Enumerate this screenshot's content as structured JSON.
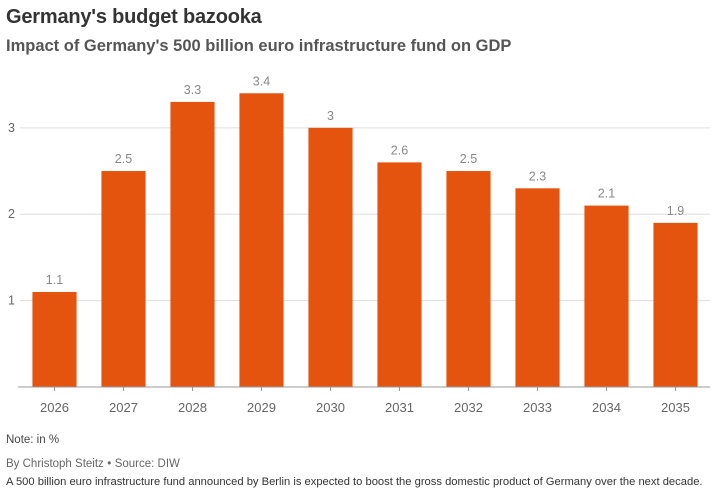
{
  "header": {
    "title": "Germany's budget bazooka",
    "subtitle": "Impact of Germany's 500 billion euro infrastructure fund on GDP"
  },
  "footer": {
    "note": "Note: in %",
    "author": "By Christoph Steitz",
    "source": "Source: DIW",
    "caption": "A 500 billion euro infrastructure fund announced by Berlin is expected to boost the gross domestic product of Germany over the next decade."
  },
  "colors": {
    "bar": "#e5540f",
    "grid": "#dddddd",
    "axis": "#999999",
    "tick_text": "#666666",
    "label_text": "#888888"
  },
  "chart_data": {
    "type": "bar",
    "title": "Germany's budget bazooka",
    "subtitle": "Impact of Germany's 500 billion euro infrastructure fund on GDP",
    "categories": [
      "2026",
      "2027",
      "2028",
      "2029",
      "2030",
      "2031",
      "2032",
      "2033",
      "2034",
      "2035"
    ],
    "values": [
      1.1,
      2.5,
      3.3,
      3.4,
      3,
      2.6,
      2.5,
      2.3,
      2.1,
      1.9
    ],
    "value_labels": [
      "1.1",
      "2.5",
      "3.3",
      "3.4",
      "3",
      "2.6",
      "2.5",
      "2.3",
      "2.1",
      "1.9"
    ],
    "yticks": [
      1,
      2,
      3
    ],
    "ylim": [
      0,
      3.6
    ],
    "xlabel": "",
    "ylabel": "",
    "grid": true,
    "legend": "none"
  }
}
